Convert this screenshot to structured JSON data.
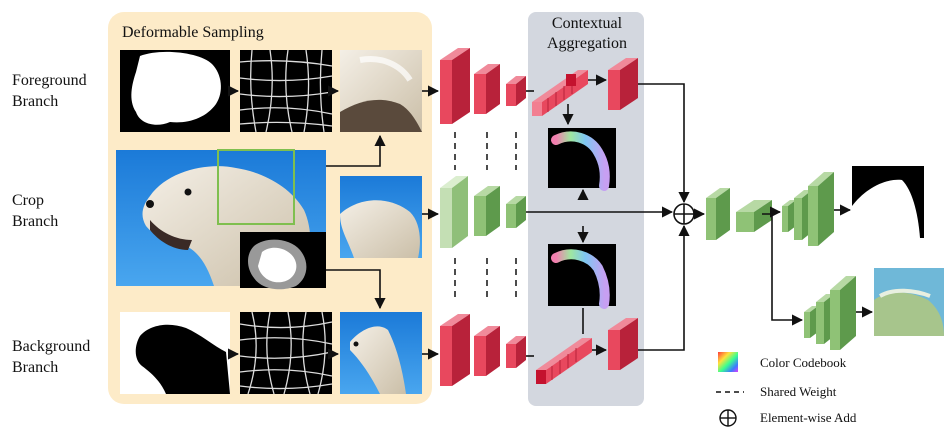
{
  "branches": {
    "foreground": "Foreground Branch",
    "crop": "Crop Branch",
    "background": "Background Branch"
  },
  "modules": {
    "deformable_sampling": "Deformable Sampling",
    "contextual_aggregation": "Contextual Aggregation"
  },
  "legend": {
    "color_codebook": "Color Codebook",
    "shared_weight": "Shared Weight",
    "element_wise_add": "Element-wise Add"
  },
  "colors": {
    "deformable_bg": "#fdebc8",
    "contextual_bg": "#d3d7df",
    "red_block": "#e8485e",
    "red_side": "#b8223a",
    "green_block": "#8fc276",
    "green_side": "#5e9a4c",
    "light_green_block": "#c4dfb4",
    "sky_blue": "#2f8fe0"
  }
}
